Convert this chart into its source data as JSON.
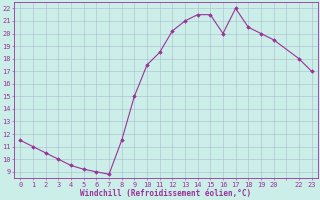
{
  "x": [
    0,
    1,
    2,
    3,
    4,
    5,
    6,
    7,
    8,
    9,
    10,
    11,
    12,
    13,
    14,
    15,
    16,
    17,
    18,
    19,
    20,
    22,
    23
  ],
  "y": [
    11.5,
    11.0,
    10.5,
    10.0,
    9.5,
    9.2,
    9.0,
    8.8,
    11.5,
    15.0,
    17.5,
    18.5,
    20.2,
    21.0,
    21.5,
    21.5,
    20.0,
    22.0,
    20.5,
    20.0,
    19.5,
    18.0,
    17.0
  ],
  "xlim": [
    -0.5,
    23.5
  ],
  "ylim": [
    8.5,
    22.5
  ],
  "yticks": [
    9,
    10,
    11,
    12,
    13,
    14,
    15,
    16,
    17,
    18,
    19,
    20,
    21,
    22
  ],
  "xticks": [
    0,
    1,
    2,
    3,
    4,
    5,
    6,
    7,
    8,
    9,
    10,
    11,
    12,
    13,
    14,
    15,
    16,
    17,
    18,
    19,
    20,
    21,
    22,
    23
  ],
  "xtick_labels": [
    "0",
    "1",
    "2",
    "3",
    "4",
    "5",
    "6",
    "7",
    "8",
    "9",
    "10",
    "11",
    "12",
    "13",
    "14",
    "15",
    "16",
    "17",
    "18",
    "19",
    "20",
    "",
    "22",
    "23"
  ],
  "xlabel": "Windchill (Refroidissement éolien,°C)",
  "line_color": "#993399",
  "marker_color": "#993399",
  "bg_color": "#cceee8",
  "grid_color": "#aabbcc",
  "axis_color": "#993399",
  "tick_color": "#993399",
  "font_color": "#993399",
  "label_fontsize": 5.0,
  "xlabel_fontsize": 5.5,
  "linewidth": 0.8,
  "markersize": 1.8
}
